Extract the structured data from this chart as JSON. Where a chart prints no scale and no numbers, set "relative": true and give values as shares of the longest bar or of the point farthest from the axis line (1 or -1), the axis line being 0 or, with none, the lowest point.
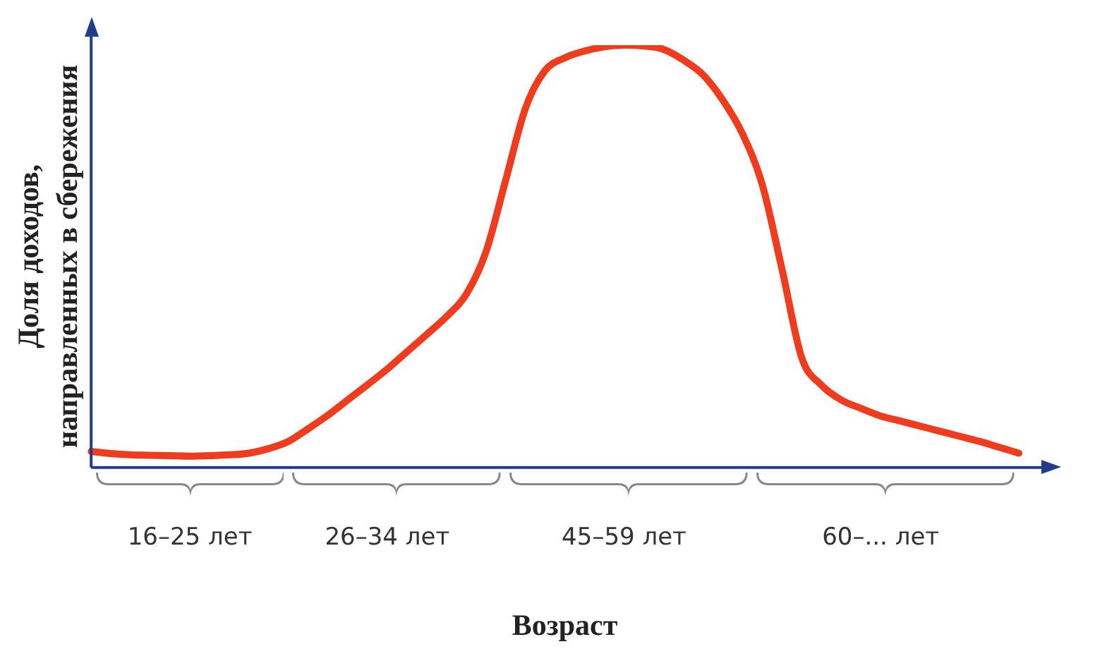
{
  "chart_data": {
    "type": "line",
    "relative": true,
    "xlabel": "Возраст",
    "ylabel": "Доля доходов,\nнаправленных в сбережения",
    "categories": [
      null,
      null,
      null,
      null,
      null,
      "16–25 лет",
      null,
      null,
      null,
      null,
      null,
      null,
      null,
      null,
      null,
      "26–34 лет",
      null,
      null,
      null,
      null,
      null,
      null,
      null,
      null,
      null,
      null,
      null,
      "45–59 лет",
      null,
      null,
      null,
      null,
      null,
      null,
      null,
      null,
      null,
      null,
      null,
      null,
      "60–... лет",
      null,
      null,
      null,
      null,
      null,
      null,
      null,
      null
    ],
    "series": [
      {
        "color": "#f03c1e",
        "values": [
          0.038,
          0.033,
          0.03,
          0.029,
          0.028,
          0.027,
          0.028,
          0.03,
          0.034,
          0.045,
          0.062,
          0.092,
          0.124,
          0.16,
          0.196,
          0.233,
          0.274,
          0.315,
          0.357,
          0.41,
          0.51,
          0.68,
          0.85,
          0.94,
          0.97,
          0.986,
          0.996,
          1,
          0.998,
          0.99,
          0.965,
          0.93,
          0.87,
          0.79,
          0.67,
          0.47,
          0.26,
          0.195,
          0.16,
          0.14,
          0.122,
          0.11,
          0.098,
          0.086,
          0.074,
          0.062,
          0.048,
          0.034,
          null
        ]
      }
    ],
    "grid": false,
    "legend": false,
    "marker": "none",
    "line_style": "solid"
  }
}
